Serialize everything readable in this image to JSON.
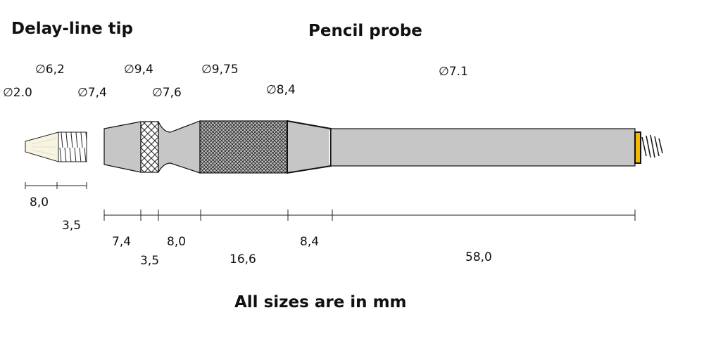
{
  "titles": {
    "tip": "Delay-line tip",
    "probe": "Pencil probe",
    "note": "All sizes are in mm"
  },
  "diameters": [
    "∅2.0",
    "∅6,2",
    "∅7,4",
    "∅9,4",
    "∅7,6",
    "∅9,75",
    "∅8,4",
    "∅7.1"
  ],
  "tip_lengths": [
    "8,0",
    "3,5"
  ],
  "probe_lengths": [
    "7,4",
    "3,5",
    "8,0",
    "16,6",
    "8,4",
    "58,0"
  ],
  "colors": {
    "body": "#c6c6c6",
    "tip": "#f7f5e0",
    "ring": "#f5b800",
    "outline": "#111111"
  }
}
